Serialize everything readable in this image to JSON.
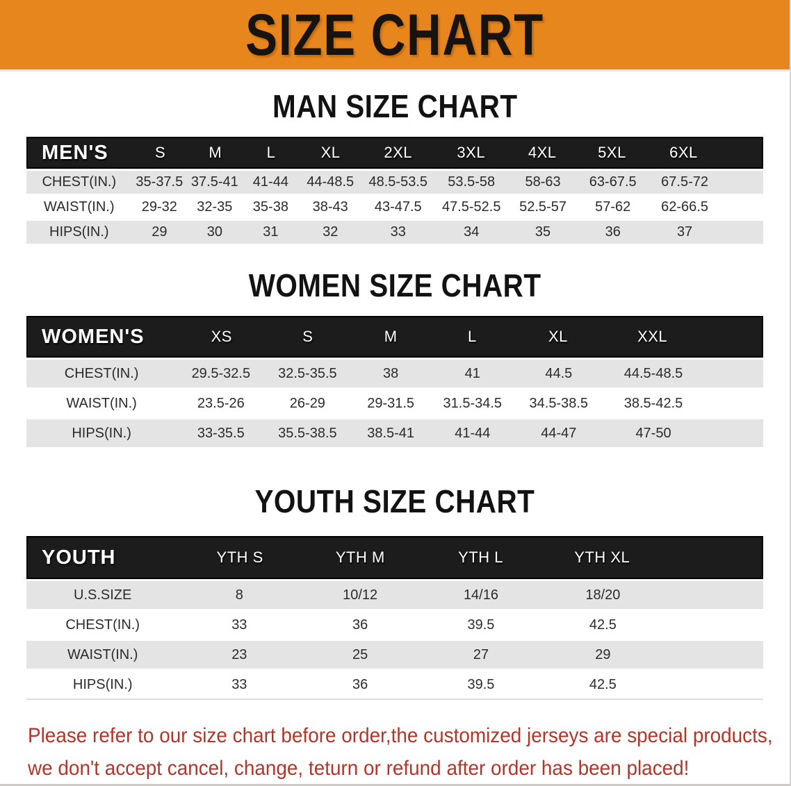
{
  "banner": {
    "title": "SIZE CHART",
    "bg_color": "#e8861e",
    "text_color": "#161310"
  },
  "sections": [
    {
      "id": "men",
      "heading": "MAN SIZE CHART",
      "header_label": "MEN'S",
      "columns": [
        "S",
        "M",
        "L",
        "XL",
        "2XL",
        "3XL",
        "4XL",
        "5XL",
        "6XL"
      ],
      "rows": [
        {
          "label": "CHEST(IN.)",
          "values": [
            "35-37.5",
            "37.5-41",
            "41-44",
            "44-48.5",
            "48.5-53.5",
            "53.5-58",
            "58-63",
            "63-67.5",
            "67.5-72"
          ]
        },
        {
          "label": "WAIST(IN.)",
          "values": [
            "29-32",
            "32-35",
            "35-38",
            "38-43",
            "43-47.5",
            "47.5-52.5",
            "52.5-57",
            "57-62",
            "62-66.5"
          ]
        },
        {
          "label": "HIPS(IN.)",
          "values": [
            "29",
            "30",
            "31",
            "32",
            "33",
            "34",
            "35",
            "36",
            "37"
          ]
        }
      ]
    },
    {
      "id": "women",
      "heading": "WOMEN SIZE CHART",
      "header_label": "WOMEN'S",
      "columns": [
        "XS",
        "S",
        "M",
        "L",
        "XL",
        "XXL"
      ],
      "rows": [
        {
          "label": "CHEST(IN.)",
          "values": [
            "29.5-32.5",
            "32.5-35.5",
            "38",
            "41",
            "44.5",
            "44.5-48.5"
          ]
        },
        {
          "label": "WAIST(IN.)",
          "values": [
            "23.5-26",
            "26-29",
            "29-31.5",
            "31.5-34.5",
            "34.5-38.5",
            "38.5-42.5"
          ]
        },
        {
          "label": "HIPS(IN.)",
          "values": [
            "33-35.5",
            "35.5-38.5",
            "38.5-41",
            "41-44",
            "44-47",
            "47-50"
          ]
        }
      ]
    },
    {
      "id": "youth",
      "heading": "YOUTH SIZE CHART",
      "header_label": "YOUTH",
      "columns": [
        "YTH S",
        "YTH M",
        "YTH L",
        "YTH XL"
      ],
      "rows": [
        {
          "label": "U.S.SIZE",
          "values": [
            "8",
            "10/12",
            "14/16",
            "18/20"
          ]
        },
        {
          "label": "CHEST(IN.)",
          "values": [
            "33",
            "36",
            "39.5",
            "42.5"
          ]
        },
        {
          "label": "WAIST(IN.)",
          "values": [
            "23",
            "25",
            "27",
            "29"
          ]
        },
        {
          "label": "HIPS(IN.)",
          "values": [
            "33",
            "36",
            "39.5",
            "42.5"
          ]
        }
      ]
    }
  ],
  "footer": {
    "line1": "Please refer to our size chart before order,the customized jerseys are special products,",
    "line2": "we don't accept cancel, change, teturn or refund after order has been placed!",
    "text_color": "#b0362b"
  },
  "row_colors": {
    "shaded": "#e4e4e4",
    "plain": "#ffffff",
    "header_band": "#1c1c1c"
  }
}
